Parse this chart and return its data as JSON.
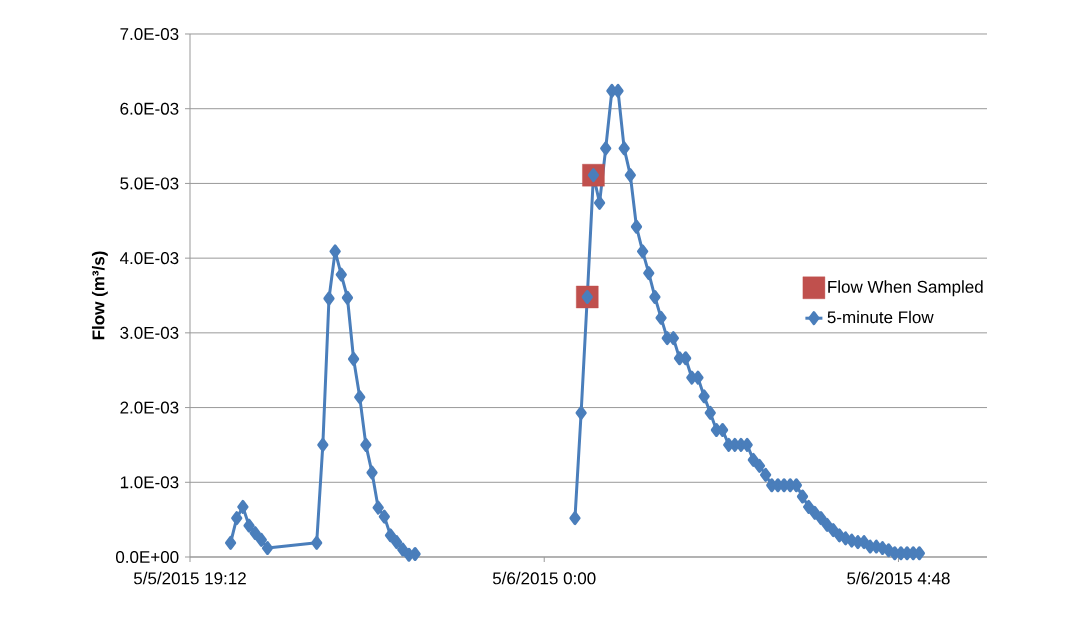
{
  "chart_data": {
    "type": "line",
    "ylabel": "Flow (m³/s)",
    "xlim": [
      "2015-05-05T19:12",
      "2015-05-06T06:00"
    ],
    "xticks": [
      {
        "value": "2015-05-05T19:12",
        "label": "5/5/2015 19:12"
      },
      {
        "value": "2015-05-06T00:00",
        "label": "5/6/2015 0:00"
      },
      {
        "value": "2015-05-06T04:48",
        "label": "5/6/2015 4:48"
      }
    ],
    "ylim": [
      0,
      0.007
    ],
    "yticks": [
      {
        "value": 0,
        "label": "0.0E+00"
      },
      {
        "value": 0.001,
        "label": "1.0E-03"
      },
      {
        "value": 0.002,
        "label": "2.0E-03"
      },
      {
        "value": 0.003,
        "label": "3.0E-03"
      },
      {
        "value": 0.004,
        "label": "4.0E-03"
      },
      {
        "value": 0.005,
        "label": "5.0E-03"
      },
      {
        "value": 0.006,
        "label": "6.0E-03"
      },
      {
        "value": 0.007,
        "label": "7.0E-03"
      }
    ],
    "grid": "y",
    "legend": "right",
    "series": [
      {
        "name": "Flow When Sampled",
        "type": "scatter",
        "marker": "square",
        "color": "#c0504d",
        "x": [
          "2015-05-06T00:35",
          "2015-05-06T00:40"
        ],
        "values": [
          0.00348,
          0.00511
        ]
      },
      {
        "name": "5-minute Flow",
        "marker": "diamond",
        "color": "#4a7ebb",
        "x": [
          "2015-05-05T19:45",
          "2015-05-05T19:50",
          "2015-05-05T19:55",
          "2015-05-05T20:00",
          "2015-05-05T20:05",
          "2015-05-05T20:10",
          "2015-05-05T20:15",
          "2015-05-05T20:55",
          "2015-05-05T21:00",
          "2015-05-05T21:05",
          "2015-05-05T21:10",
          "2015-05-05T21:15",
          "2015-05-05T21:20",
          "2015-05-05T21:25",
          "2015-05-05T21:30",
          "2015-05-05T21:35",
          "2015-05-05T21:40",
          "2015-05-05T21:45",
          "2015-05-05T21:50",
          "2015-05-05T21:55",
          "2015-05-05T22:00",
          "2015-05-05T22:05",
          "2015-05-05T22:10",
          "2015-05-05T22:15",
          "2015-05-05T23:00",
          "2015-05-06T00:25",
          "2015-05-06T00:30",
          "2015-05-06T00:35",
          "2015-05-06T00:40",
          "2015-05-06T00:45",
          "2015-05-06T00:50",
          "2015-05-06T00:55",
          "2015-05-06T01:00",
          "2015-05-06T01:05",
          "2015-05-06T01:10",
          "2015-05-06T01:15",
          "2015-05-06T01:20",
          "2015-05-06T01:25",
          "2015-05-06T01:30",
          "2015-05-06T01:35",
          "2015-05-06T01:40",
          "2015-05-06T01:45",
          "2015-05-06T01:50",
          "2015-05-06T01:55",
          "2015-05-06T02:00",
          "2015-05-06T02:05",
          "2015-05-06T02:10",
          "2015-05-06T02:15",
          "2015-05-06T02:20",
          "2015-05-06T02:25",
          "2015-05-06T02:30",
          "2015-05-06T02:35",
          "2015-05-06T02:40",
          "2015-05-06T02:45",
          "2015-05-06T02:50",
          "2015-05-06T02:55",
          "2015-05-06T03:00",
          "2015-05-06T03:05",
          "2015-05-06T03:10",
          "2015-05-06T03:15",
          "2015-05-06T03:20",
          "2015-05-06T03:25",
          "2015-05-06T03:30",
          "2015-05-06T03:35",
          "2015-05-06T03:40",
          "2015-05-06T03:45",
          "2015-05-06T03:50",
          "2015-05-06T03:55",
          "2015-05-06T04:00",
          "2015-05-06T04:05",
          "2015-05-06T04:10",
          "2015-05-06T04:15",
          "2015-05-06T04:20",
          "2015-05-06T04:25",
          "2015-05-06T04:30",
          "2015-05-06T04:35",
          "2015-05-06T04:40",
          "2015-05-06T04:45",
          "2015-05-06T04:50",
          "2015-05-06T04:55",
          "2015-05-06T05:00",
          "2015-05-06T05:05"
        ],
        "values": [
          0.00019,
          0.00052,
          0.00067,
          0.00042,
          0.00032,
          0.00023,
          0.00012,
          0.00019,
          0.0015,
          0.00346,
          0.00409,
          0.00378,
          0.00347,
          0.00265,
          0.00214,
          0.0015,
          0.00113,
          0.00066,
          0.00054,
          0.00029,
          0.0002,
          0.0001,
          3e-05,
          4e-05,
          null,
          0.00052,
          0.00193,
          0.00348,
          0.00511,
          0.00474,
          0.00547,
          0.00624,
          0.00624,
          0.00547,
          0.00511,
          0.00442,
          0.00409,
          0.0038,
          0.00348,
          0.0032,
          0.00293,
          0.00293,
          0.00266,
          0.00266,
          0.0024,
          0.0024,
          0.00215,
          0.00193,
          0.0017,
          0.0017,
          0.0015,
          0.0015,
          0.0015,
          0.0015,
          0.0013,
          0.00122,
          0.0011,
          0.00096,
          0.00096,
          0.00096,
          0.00096,
          0.00096,
          0.00081,
          0.00067,
          0.00059,
          0.00052,
          0.00043,
          0.00036,
          0.00029,
          0.00025,
          0.00022,
          0.0002,
          0.0002,
          0.00014,
          0.00014,
          0.00012,
          9e-05,
          5e-05,
          5e-05,
          5e-05,
          5e-05,
          5e-05
        ]
      }
    ]
  }
}
